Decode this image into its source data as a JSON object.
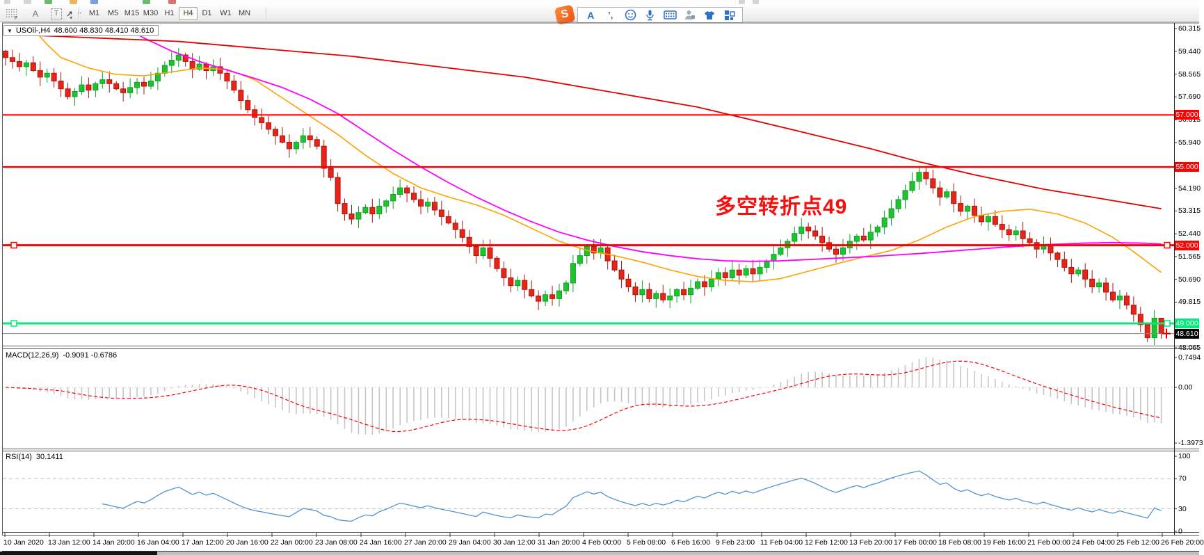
{
  "toolbar": {
    "left_icons": [
      {
        "name": "snap-grid-icon",
        "glyph": "F"
      },
      {
        "name": "font-icon",
        "glyph": "A"
      },
      {
        "name": "text-object-icon",
        "glyph": "T"
      },
      {
        "name": "cursor-mode-icon",
        "glyph": "▾"
      }
    ],
    "timeframes": [
      "M1",
      "M5",
      "M15",
      "M30",
      "H1",
      "H4",
      "D1",
      "W1",
      "MN"
    ],
    "active_timeframe": "H4"
  },
  "ime": {
    "logo_text": "S",
    "buttons": [
      "letter-mode",
      "punctuation",
      "emoji",
      "voice-input",
      "keyboard",
      "account",
      "skin",
      "toolbox"
    ]
  },
  "chart": {
    "symbol_title": "USOil-,H4",
    "ohlc_display": "48.600 48.830 48.410 48.610",
    "annotation": {
      "text": "多空转折点49",
      "color": "#f90d0d"
    },
    "axis_labels": [
      60.315,
      59.44,
      58.565,
      57.69,
      56.815,
      55.94,
      54.19,
      53.315,
      52.44,
      51.565,
      50.69,
      49.815,
      48.065
    ],
    "hlines": [
      {
        "price": 57.0,
        "label": "57.000",
        "color": "#fe0000",
        "width": 2,
        "handles": false
      },
      {
        "price": 55.0,
        "label": "55.000",
        "color": "#fe0000",
        "width": 2.5,
        "handles": false
      },
      {
        "price": 52.0,
        "label": "52.000",
        "color": "#fe0000",
        "width": 3,
        "handles": true
      },
      {
        "price": 49.0,
        "label": "49.000",
        "color": "#00e97b",
        "width": 3,
        "handles": true
      }
    ],
    "current_price": {
      "value": "48.610",
      "price": 48.61,
      "line_color": "#8a8a8a",
      "badge_color": "#000000"
    },
    "colors": {
      "up": "#1fc32e",
      "up_border": "#0ba226",
      "down": "#e32619",
      "down_border": "#b2130a",
      "ma_fast": "#ffa200",
      "ma_mid": "#ff00ff",
      "ma_slow": "#e20000"
    }
  },
  "macd_panel": {
    "title": "MACD(12,26,9)",
    "values": "-0.9091 -0.6786",
    "axis": [
      0.7494,
      0.0,
      -1.3973
    ],
    "bar_color": "#c6c6c6",
    "signal_color": "#fd0000"
  },
  "rsi_panel": {
    "title": "RSI(14)",
    "value": "30.1411",
    "axis": [
      100,
      70,
      30,
      0
    ],
    "levels": [
      70,
      30
    ],
    "line_color": "#4f93d4"
  },
  "chart_data": {
    "type": "candlestick",
    "symbol": "USOil-",
    "timeframe": "H4",
    "title": "USOil-,H4 48.600 48.830 48.410 48.610",
    "ylim": [
      48.065,
      60.315
    ],
    "last_candle": {
      "open": 48.6,
      "high": 48.83,
      "low": 48.41,
      "close": 48.61
    },
    "closes": [
      59.2,
      59.05,
      58.85,
      59.0,
      58.7,
      58.45,
      58.6,
      58.3,
      58.0,
      57.7,
      57.9,
      58.15,
      57.95,
      58.2,
      58.35,
      58.2,
      58.0,
      57.85,
      58.05,
      58.25,
      58.1,
      58.3,
      58.6,
      58.9,
      59.1,
      59.3,
      59.05,
      58.75,
      58.95,
      58.7,
      58.85,
      58.6,
      58.3,
      57.95,
      57.55,
      57.2,
      56.9,
      56.7,
      56.45,
      56.2,
      55.95,
      55.7,
      55.95,
      56.2,
      56.05,
      55.8,
      54.95,
      54.6,
      53.6,
      53.2,
      53.0,
      53.25,
      53.45,
      53.2,
      53.5,
      53.7,
      53.95,
      54.2,
      54.0,
      53.75,
      53.5,
      53.65,
      53.35,
      53.1,
      52.85,
      52.6,
      52.3,
      51.95,
      51.6,
      51.9,
      51.5,
      51.1,
      50.75,
      50.45,
      50.65,
      50.3,
      50.05,
      49.85,
      50.1,
      49.95,
      50.25,
      50.55,
      51.3,
      51.6,
      51.95,
      51.7,
      51.9,
      51.4,
      51.05,
      50.7,
      50.4,
      50.1,
      50.3,
      49.95,
      50.15,
      49.9,
      50.05,
      50.3,
      50.1,
      50.35,
      50.6,
      50.4,
      50.7,
      50.95,
      50.75,
      51.05,
      50.85,
      51.1,
      50.9,
      51.15,
      51.4,
      51.65,
      51.9,
      52.15,
      52.45,
      52.7,
      52.55,
      52.35,
      52.1,
      51.85,
      51.65,
      51.9,
      52.15,
      52.35,
      52.2,
      52.5,
      52.7,
      53.05,
      53.4,
      53.75,
      54.1,
      54.45,
      54.8,
      54.55,
      54.2,
      53.85,
      54.05,
      53.6,
      53.3,
      53.5,
      53.15,
      52.9,
      53.1,
      52.8,
      52.6,
      52.4,
      52.55,
      52.25,
      52.1,
      51.85,
      52.0,
      51.7,
      51.45,
      51.15,
      50.9,
      51.05,
      50.7,
      50.4,
      50.55,
      50.2,
      49.9,
      50.05,
      49.7,
      49.35,
      48.95,
      48.45,
      49.2,
      48.61
    ],
    "ma_slow_points": [
      [
        0,
        60.1
      ],
      [
        25,
        59.82
      ],
      [
        50,
        59.25
      ],
      [
        75,
        58.45
      ],
      [
        100,
        57.3
      ],
      [
        115,
        56.35
      ],
      [
        125,
        55.7
      ],
      [
        132,
        55.2
      ],
      [
        140,
        54.7
      ],
      [
        150,
        54.15
      ],
      [
        158,
        53.8
      ],
      [
        167,
        53.4
      ]
    ],
    "ma_mid_points": [
      [
        17,
        60.4
      ],
      [
        20,
        59.95
      ],
      [
        24,
        59.45
      ],
      [
        28,
        59.05
      ],
      [
        32,
        58.72
      ],
      [
        36,
        58.4
      ],
      [
        40,
        58.05
      ],
      [
        44,
        57.6
      ],
      [
        48,
        57.05
      ],
      [
        52,
        56.35
      ],
      [
        56,
        55.65
      ],
      [
        60,
        55.0
      ],
      [
        64,
        54.4
      ],
      [
        68,
        53.85
      ],
      [
        72,
        53.35
      ],
      [
        76,
        52.9
      ],
      [
        80,
        52.5
      ],
      [
        84,
        52.2
      ],
      [
        88,
        51.95
      ],
      [
        92,
        51.75
      ],
      [
        96,
        51.6
      ],
      [
        100,
        51.48
      ],
      [
        104,
        51.4
      ],
      [
        108,
        51.38
      ],
      [
        112,
        51.4
      ],
      [
        116,
        51.45
      ],
      [
        120,
        51.5
      ],
      [
        126,
        51.58
      ],
      [
        132,
        51.68
      ],
      [
        138,
        51.8
      ],
      [
        144,
        51.92
      ],
      [
        150,
        52.02
      ],
      [
        156,
        52.08
      ],
      [
        160,
        52.1
      ],
      [
        164,
        52.08
      ],
      [
        167,
        52.05
      ]
    ],
    "ma_fast_points": [
      [
        4,
        60.3
      ],
      [
        6,
        59.7
      ],
      [
        8,
        59.2
      ],
      [
        12,
        58.8
      ],
      [
        16,
        58.55
      ],
      [
        20,
        58.5
      ],
      [
        24,
        58.65
      ],
      [
        28,
        58.8
      ],
      [
        32,
        58.75
      ],
      [
        36,
        58.35
      ],
      [
        40,
        57.65
      ],
      [
        44,
        56.95
      ],
      [
        48,
        56.25
      ],
      [
        52,
        55.45
      ],
      [
        56,
        54.75
      ],
      [
        60,
        54.2
      ],
      [
        64,
        53.85
      ],
      [
        68,
        53.55
      ],
      [
        72,
        53.15
      ],
      [
        76,
        52.65
      ],
      [
        80,
        52.15
      ],
      [
        84,
        51.8
      ],
      [
        88,
        51.6
      ],
      [
        92,
        51.35
      ],
      [
        96,
        51.05
      ],
      [
        100,
        50.8
      ],
      [
        104,
        50.65
      ],
      [
        108,
        50.6
      ],
      [
        112,
        50.72
      ],
      [
        116,
        51.0
      ],
      [
        120,
        51.28
      ],
      [
        124,
        51.55
      ],
      [
        128,
        51.8
      ],
      [
        132,
        52.2
      ],
      [
        136,
        52.7
      ],
      [
        140,
        53.1
      ],
      [
        144,
        53.3
      ],
      [
        148,
        53.38
      ],
      [
        152,
        53.2
      ],
      [
        156,
        52.85
      ],
      [
        160,
        52.3
      ],
      [
        163,
        51.75
      ],
      [
        167,
        50.95
      ]
    ],
    "macd": {
      "params": [
        12,
        26,
        9
      ],
      "main_last": -0.9091,
      "signal_last": -0.6786,
      "panel_max": 0.7494,
      "panel_min": -1.3973
    },
    "rsi": {
      "period": 14,
      "last": 30.1411,
      "levels": [
        70,
        30
      ],
      "range": [
        0,
        100
      ]
    },
    "time_labels": [
      "10 Jan 2020",
      "13 Jan 12:00",
      "14 Jan 20:00",
      "16 Jan 04:00",
      "17 Jan 12:00",
      "20 Jan 16:00",
      "22 Jan 00:00",
      "23 Jan 08:00",
      "24 Jan 16:00",
      "27 Jan 20:00",
      "29 Jan 04:00",
      "30 Jan 12:00",
      "31 Jan 20:00",
      "4 Feb 00:00",
      "5 Feb 08:00",
      "6 Feb 16:00",
      "9 Feb 23:00",
      "11 Feb 04:00",
      "12 Feb 12:00",
      "13 Feb 20:00",
      "17 Feb 00:00",
      "18 Feb 08:00",
      "19 Feb 16:00",
      "21 Feb 00:00",
      "24 Feb 04:00",
      "25 Feb 12:00",
      "26 Feb 20:00"
    ]
  }
}
